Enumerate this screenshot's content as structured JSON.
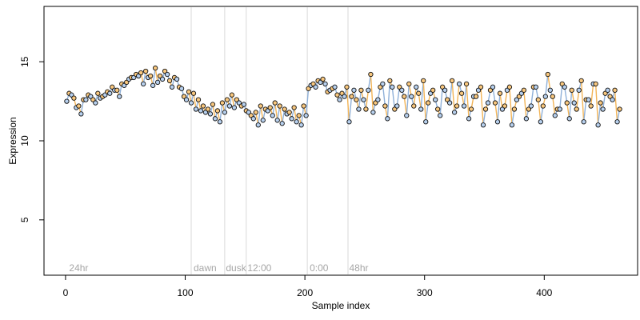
{
  "chart_data": {
    "type": "scatter",
    "xlabel": "Sample index",
    "ylabel": "Expression",
    "xlim": [
      -18,
      478
    ],
    "ylim": [
      1.5,
      18.5
    ],
    "x_ticks": [
      0,
      100,
      200,
      300,
      400
    ],
    "y_ticks": [
      5,
      10,
      15
    ],
    "grid": false,
    "legend": "none",
    "colors": {
      "line_blue": "#8fb0d8",
      "line_orange": "#f2b457",
      "point_blue": "#b7d0ee",
      "point_orange": "#f8c77e",
      "point_stroke": "#111111",
      "divider": "#d9d9d9",
      "phase_text": "#a6a6a6"
    },
    "phase_dividers": [
      105,
      133,
      151,
      202,
      236
    ],
    "phase_labels": [
      {
        "text": "24hr",
        "x": 3
      },
      {
        "text": "dawn",
        "x": 107
      },
      {
        "text": "dusk",
        "x": 134
      },
      {
        "text": "12:00",
        "x": 152
      },
      {
        "text": "0:00",
        "x": 204
      },
      {
        "text": "48hr",
        "x": 237
      }
    ],
    "series": [
      {
        "color": "blue",
        "x": [
          1,
          5,
          9,
          13,
          17,
          21,
          25,
          29,
          33,
          37,
          41,
          45,
          49,
          53,
          57,
          61,
          65,
          69,
          73,
          77,
          81,
          85,
          89,
          93,
          97,
          101,
          105,
          109,
          113,
          117,
          121,
          125,
          129,
          133,
          137,
          141,
          145,
          149,
          153,
          157,
          161,
          165,
          169,
          173,
          177,
          181,
          185,
          189,
          193,
          197,
          201,
          205,
          209,
          213,
          217,
          221,
          225,
          229,
          233,
          237,
          241,
          245,
          249,
          253,
          257,
          261,
          265,
          269,
          273,
          277,
          281,
          285,
          289,
          293,
          297,
          301,
          305,
          309,
          313,
          317,
          321,
          325,
          329,
          333,
          337,
          341,
          345,
          349,
          353,
          357,
          361,
          365,
          369,
          373,
          377,
          381,
          385,
          389,
          393,
          397,
          401,
          405,
          409,
          413,
          417,
          421,
          425,
          429,
          433,
          437,
          441,
          445,
          449,
          453,
          457,
          461
        ],
        "y": [
          12.5,
          12.9,
          12.1,
          11.7,
          12.6,
          12.8,
          12.4,
          12.7,
          12.9,
          13.0,
          13.2,
          12.8,
          13.5,
          13.9,
          14.0,
          14.1,
          13.6,
          14.0,
          13.5,
          13.7,
          13.9,
          14.2,
          13.4,
          13.9,
          13.3,
          12.6,
          12.4,
          12.0,
          11.9,
          11.8,
          11.7,
          11.4,
          11.2,
          11.8,
          12.2,
          12.1,
          12.4,
          12.3,
          11.8,
          11.4,
          11.0,
          11.3,
          11.9,
          11.6,
          11.3,
          11.1,
          11.7,
          11.4,
          11.2,
          11.0,
          11.6,
          13.5,
          13.4,
          13.7,
          13.6,
          13.2,
          13.4,
          12.6,
          12.8,
          11.2,
          13.2,
          12.0,
          12.6,
          13.2,
          11.8,
          12.6,
          13.6,
          11.4,
          13.4,
          12.2,
          13.2,
          11.6,
          12.8,
          13.4,
          12.0,
          11.2,
          13.0,
          12.6,
          11.6,
          13.2,
          12.4,
          11.8,
          13.6,
          12.2,
          11.4,
          12.8,
          13.2,
          11.0,
          12.4,
          13.4,
          11.2,
          12.0,
          13.2,
          11.0,
          12.6,
          13.0,
          11.4,
          12.2,
          13.4,
          11.2,
          12.8,
          13.2,
          11.6,
          12.0,
          13.4,
          11.4,
          12.4,
          13.2,
          11.2,
          12.6,
          13.6,
          11.0,
          12.0,
          13.2,
          12.6,
          11.2
        ]
      },
      {
        "color": "orange",
        "x": [
          3,
          7,
          11,
          15,
          19,
          23,
          27,
          31,
          35,
          39,
          43,
          47,
          51,
          55,
          59,
          63,
          67,
          71,
          75,
          79,
          83,
          87,
          91,
          95,
          99,
          103,
          107,
          111,
          115,
          119,
          123,
          127,
          131,
          135,
          139,
          143,
          147,
          151,
          155,
          159,
          163,
          167,
          171,
          175,
          179,
          183,
          187,
          191,
          195,
          199,
          203,
          207,
          211,
          215,
          219,
          223,
          227,
          231,
          235,
          239,
          243,
          247,
          251,
          255,
          259,
          263,
          267,
          271,
          275,
          279,
          283,
          287,
          291,
          295,
          299,
          303,
          307,
          311,
          315,
          319,
          323,
          327,
          331,
          335,
          339,
          343,
          347,
          351,
          355,
          359,
          363,
          367,
          371,
          375,
          379,
          383,
          387,
          391,
          395,
          399,
          403,
          407,
          411,
          415,
          419,
          423,
          427,
          431,
          435,
          439,
          443,
          447,
          451,
          455,
          459,
          463
        ],
        "y": [
          13.0,
          12.7,
          12.2,
          12.6,
          12.9,
          12.6,
          13.0,
          12.8,
          13.1,
          13.4,
          13.2,
          13.6,
          13.7,
          14.0,
          14.2,
          14.3,
          14.4,
          14.1,
          14.6,
          14.1,
          14.4,
          13.8,
          14.0,
          13.4,
          12.8,
          13.1,
          13.0,
          12.6,
          12.2,
          12.0,
          12.3,
          11.9,
          12.4,
          12.6,
          12.9,
          12.6,
          12.2,
          11.9,
          11.6,
          11.8,
          12.2,
          12.0,
          12.1,
          12.4,
          12.2,
          12.0,
          11.8,
          12.1,
          11.6,
          12.2,
          13.3,
          13.6,
          13.8,
          13.9,
          13.1,
          13.3,
          12.9,
          13.0,
          13.4,
          12.8,
          12.6,
          13.2,
          12.0,
          14.2,
          12.4,
          13.4,
          12.2,
          13.8,
          12.0,
          13.4,
          12.8,
          13.6,
          12.2,
          13.0,
          13.8,
          12.4,
          13.2,
          12.0,
          13.4,
          12.6,
          13.8,
          12.2,
          13.0,
          13.6,
          12.0,
          12.8,
          13.4,
          12.0,
          13.2,
          12.4,
          13.0,
          12.2,
          13.4,
          12.0,
          12.8,
          13.2,
          12.0,
          13.4,
          12.6,
          12.2,
          14.2,
          12.8,
          12.0,
          13.6,
          12.4,
          13.2,
          12.0,
          13.8,
          12.6,
          12.2,
          13.6,
          12.4,
          13.0,
          12.8,
          13.2,
          12.0
        ]
      }
    ]
  }
}
